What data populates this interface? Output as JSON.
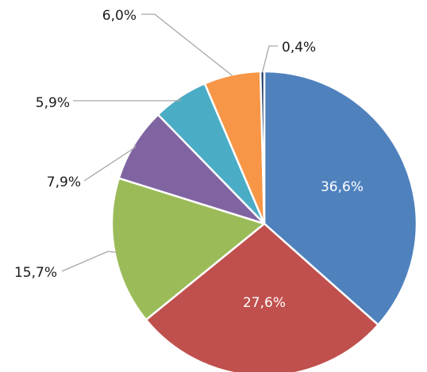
{
  "chart_data": {
    "type": "pie",
    "title": "",
    "start_angle_deg": 0,
    "direction": "clockwise",
    "slices": [
      {
        "value": 36.6,
        "label": "36,6%",
        "color": "#4f81bd"
      },
      {
        "value": 27.6,
        "label": "27,6%",
        "color": "#c0504d"
      },
      {
        "value": 15.7,
        "label": "15,7%",
        "color": "#9bbb59"
      },
      {
        "value": 7.9,
        "label": "7,9%",
        "color": "#8064a2"
      },
      {
        "value": 5.9,
        "label": "5,9%",
        "color": "#4bacc6"
      },
      {
        "value": 6.0,
        "label": "6,0%",
        "color": "#f79646"
      },
      {
        "value": 0.4,
        "label": "0,4%",
        "color": "#1f3864"
      }
    ],
    "legend": "none"
  }
}
